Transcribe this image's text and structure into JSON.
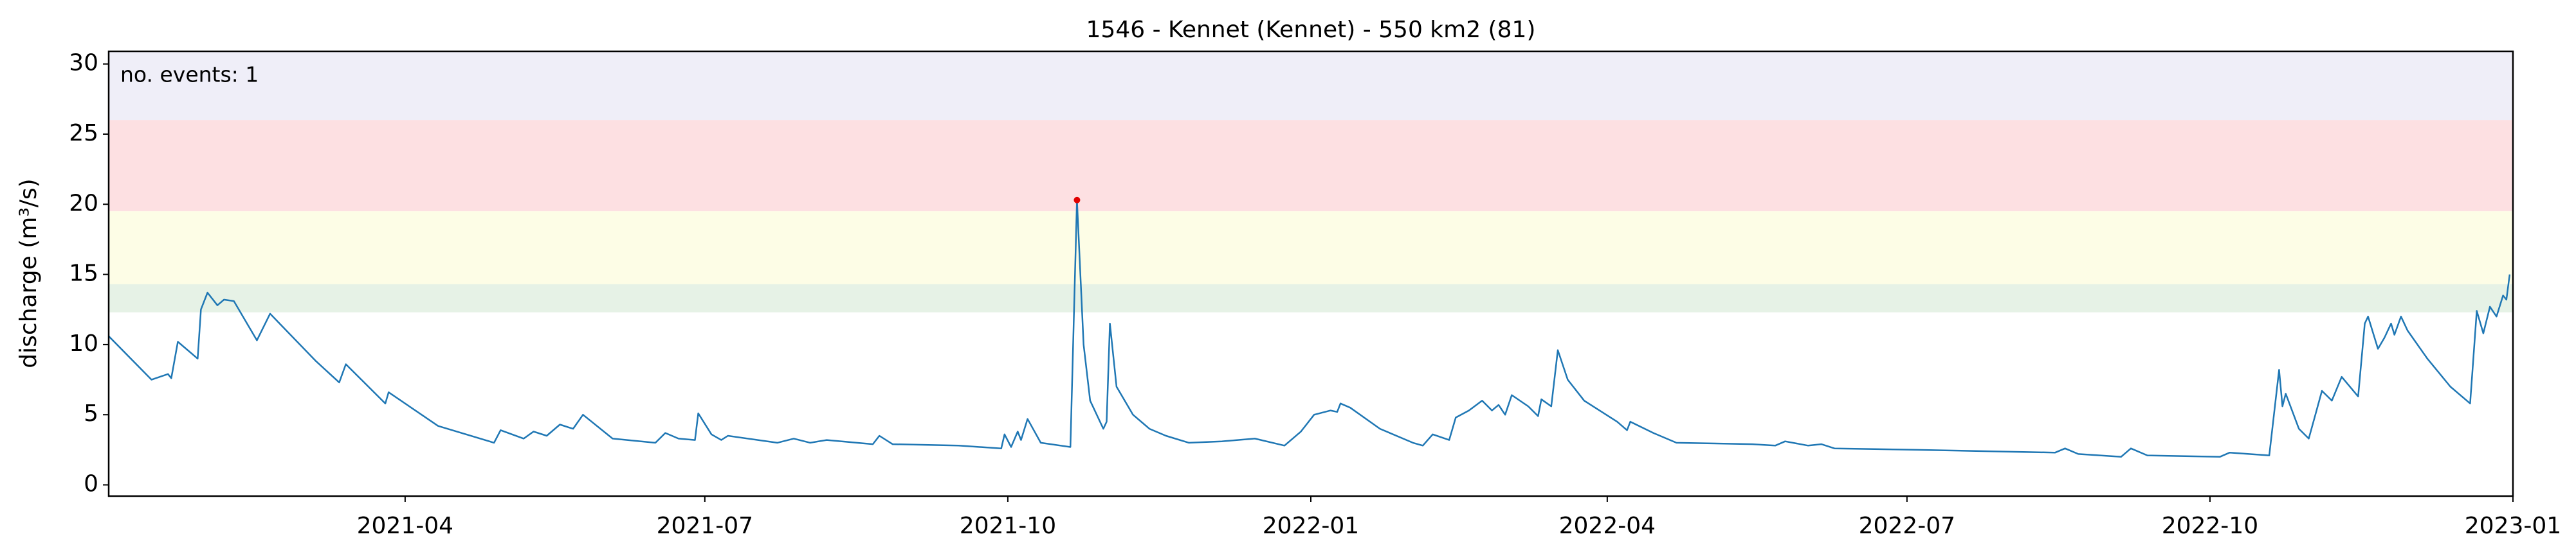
{
  "chart_data": {
    "type": "line",
    "title": "1546 - Kennet (Kennet) - 550 km2 (81)",
    "y_label": "discharge (m³/s)",
    "annotation": "no. events: 1",
    "annotation_color": "#e00000",
    "xlim": [
      "2021-01-01",
      "2023-01-01"
    ],
    "ylim": [
      -0.8,
      30.9
    ],
    "yticks": [
      0,
      5,
      10,
      15,
      20,
      25,
      30
    ],
    "xticks": [
      {
        "value": "2021-04-01",
        "label": "2021-04"
      },
      {
        "value": "2021-07-01",
        "label": "2021-07"
      },
      {
        "value": "2021-10-01",
        "label": "2021-10"
      },
      {
        "value": "2022-01-01",
        "label": "2022-01"
      },
      {
        "value": "2022-04-01",
        "label": "2022-04"
      },
      {
        "value": "2022-07-01",
        "label": "2022-07"
      },
      {
        "value": "2022-10-01",
        "label": "2022-10"
      },
      {
        "value": "2023-01-01",
        "label": "2023-01"
      }
    ],
    "bands": [
      {
        "from": 26,
        "to": 31,
        "color": "#efeef8"
      },
      {
        "from": 19.5,
        "to": 26,
        "color": "#fde0e2"
      },
      {
        "from": 14.3,
        "to": 19.5,
        "color": "#fdfde6"
      },
      {
        "from": 12.3,
        "to": 14.3,
        "color": "#e6f2e6"
      }
    ],
    "events": {
      "x": [
        "2021-10-22"
      ],
      "values": [
        20.3
      ],
      "color": "#e00000"
    },
    "x": [
      "2021-01-01",
      "2021-01-14",
      "2021-01-19",
      "2021-01-20",
      "2021-01-22",
      "2021-01-28",
      "2021-01-29",
      "2021-01-31",
      "2021-02-03",
      "2021-02-05",
      "2021-02-08",
      "2021-02-15",
      "2021-02-19",
      "2021-03-05",
      "2021-03-12",
      "2021-03-14",
      "2021-03-26",
      "2021-03-27",
      "2021-04-11",
      "2021-04-28",
      "2021-04-30",
      "2021-05-07",
      "2021-05-10",
      "2021-05-14",
      "2021-05-18",
      "2021-05-22",
      "2021-05-25",
      "2021-06-03",
      "2021-06-16",
      "2021-06-19",
      "2021-06-23",
      "2021-06-28",
      "2021-06-29",
      "2021-07-03",
      "2021-07-06",
      "2021-07-08",
      "2021-07-23",
      "2021-07-28",
      "2021-08-02",
      "2021-08-07",
      "2021-08-21",
      "2021-08-23",
      "2021-08-27",
      "2021-09-16",
      "2021-09-29",
      "2021-09-30",
      "2021-10-02",
      "2021-10-04",
      "2021-10-05",
      "2021-10-07",
      "2021-10-11",
      "2021-10-20",
      "2021-10-22",
      "2021-10-24",
      "2021-10-26",
      "2021-10-30",
      "2021-10-31",
      "2021-11-01",
      "2021-11-03",
      "2021-11-08",
      "2021-11-13",
      "2021-11-18",
      "2021-11-25",
      "2021-12-05",
      "2021-12-15",
      "2021-12-24",
      "2021-12-29",
      "2022-01-02",
      "2022-01-07",
      "2022-01-09",
      "2022-01-10",
      "2022-01-13",
      "2022-01-22",
      "2022-02-01",
      "2022-02-04",
      "2022-02-07",
      "2022-02-12",
      "2022-02-14",
      "2022-02-18",
      "2022-02-22",
      "2022-02-25",
      "2022-02-27",
      "2022-03-01",
      "2022-03-03",
      "2022-03-08",
      "2022-03-11",
      "2022-03-12",
      "2022-03-15",
      "2022-03-17",
      "2022-03-20",
      "2022-03-25",
      "2022-04-04",
      "2022-04-07",
      "2022-04-08",
      "2022-04-15",
      "2022-04-22",
      "2022-05-15",
      "2022-05-22",
      "2022-05-25",
      "2022-06-01",
      "2022-06-05",
      "2022-06-09",
      "2022-07-04",
      "2022-08-15",
      "2022-08-18",
      "2022-08-22",
      "2022-09-04",
      "2022-09-07",
      "2022-09-12",
      "2022-10-04",
      "2022-10-07",
      "2022-10-19",
      "2022-10-22",
      "2022-10-23",
      "2022-10-24",
      "2022-10-28",
      "2022-10-31",
      "2022-11-02",
      "2022-11-04",
      "2022-11-07",
      "2022-11-10",
      "2022-11-15",
      "2022-11-17",
      "2022-11-18",
      "2022-11-21",
      "2022-11-23",
      "2022-11-25",
      "2022-11-26",
      "2022-11-28",
      "2022-11-30",
      "2022-12-06",
      "2022-12-13",
      "2022-12-19",
      "2022-12-21",
      "2022-12-23",
      "2022-12-25",
      "2022-12-27",
      "2022-12-29",
      "2022-12-30",
      "2022-12-31"
    ],
    "series": [
      {
        "name": "discharge",
        "color": "#1f77b4",
        "values": [
          10.6,
          7.5,
          7.9,
          7.6,
          10.2,
          9.0,
          12.5,
          13.7,
          12.8,
          13.2,
          13.1,
          10.3,
          12.2,
          8.8,
          7.3,
          8.6,
          5.8,
          6.6,
          4.2,
          3.0,
          3.9,
          3.3,
          3.8,
          3.5,
          4.3,
          4.0,
          5.0,
          3.3,
          3.0,
          3.7,
          3.3,
          3.2,
          5.1,
          3.6,
          3.2,
          3.5,
          3.0,
          3.3,
          3.0,
          3.2,
          2.9,
          3.5,
          2.9,
          2.8,
          2.6,
          3.6,
          2.7,
          3.8,
          3.2,
          4.7,
          3.0,
          2.7,
          20.3,
          10,
          6,
          4.0,
          4.5,
          11.5,
          7.0,
          5.0,
          4.0,
          3.5,
          3.0,
          3.1,
          3.3,
          2.8,
          3.8,
          5.0,
          5.3,
          5.2,
          5.8,
          5.5,
          4.0,
          3.0,
          2.8,
          3.6,
          3.2,
          4.8,
          5.3,
          6.0,
          5.3,
          5.7,
          5.0,
          6.4,
          5.6,
          4.9,
          6.1,
          5.6,
          9.6,
          7.5,
          6.0,
          4.5,
          3.9,
          4.5,
          3.7,
          3.0,
          2.9,
          2.8,
          3.1,
          2.8,
          2.9,
          2.6,
          2.5,
          2.3,
          2.6,
          2.2,
          2.0,
          2.6,
          2.1,
          2.0,
          2.3,
          2.1,
          8.2,
          5.6,
          6.5,
          4.0,
          3.3,
          5.0,
          6.7,
          6.0,
          7.7,
          6.3,
          11.5,
          12.0,
          9.7,
          10.5,
          11.5,
          10.7,
          12.0,
          11.0,
          9.0,
          7.0,
          5.8,
          12.4,
          10.8,
          12.7,
          12.0,
          13.5,
          13.2,
          15.0
        ]
      }
    ]
  }
}
